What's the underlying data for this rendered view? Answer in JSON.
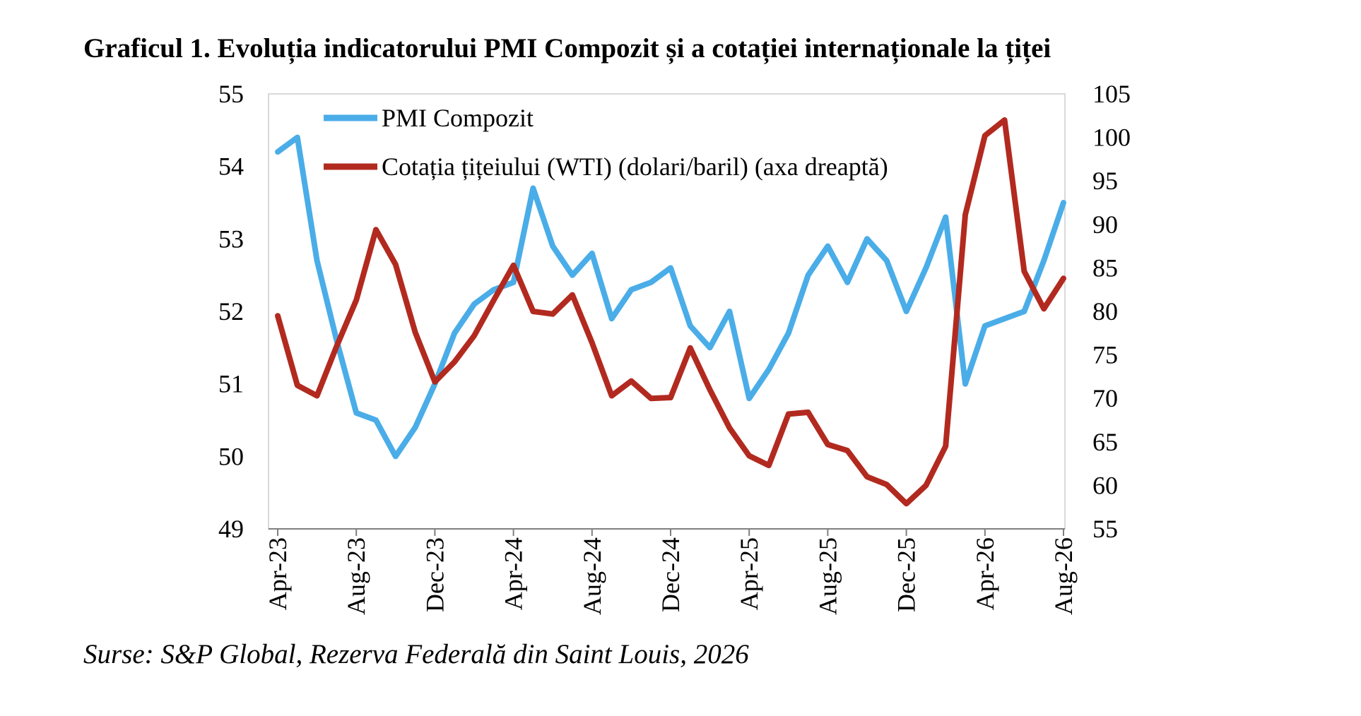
{
  "chart_data": {
    "type": "line",
    "title": "Graficul 1. Evoluția indicatorului PMI Compozit și a cotației internaționale la țiței",
    "source": "Surse: S&P Global, Rezerva Federală din Saint Louis, 2026",
    "x": [
      "Apr-23",
      "May-23",
      "Jun-23",
      "Jul-23",
      "Aug-23",
      "Sep-23",
      "Oct-23",
      "Nov-23",
      "Dec-23",
      "Jan-24",
      "Feb-24",
      "Mar-24",
      "Apr-24",
      "May-24",
      "Jun-24",
      "Jul-24",
      "Aug-24",
      "Sep-24",
      "Oct-24",
      "Nov-24",
      "Dec-24",
      "Jan-25",
      "Feb-25",
      "Mar-25",
      "Apr-25",
      "May-25",
      "Jun-25",
      "Jul-25",
      "Aug-25",
      "Sep-25",
      "Oct-25",
      "Nov-25",
      "Dec-25",
      "Jan-26",
      "Feb-26",
      "Mar-26",
      "Apr-26",
      "May-26",
      "Jun-26",
      "Jul-26",
      "Aug-26"
    ],
    "x_tick_labels": [
      "Apr-23",
      "Aug-23",
      "Dec-23",
      "Apr-24",
      "Aug-24",
      "Dec-24",
      "Apr-25",
      "Aug-25",
      "Dec-25",
      "Apr-26",
      "Aug-26"
    ],
    "y_left": {
      "ylim": [
        49,
        55
      ],
      "ticks": [
        "49",
        "50",
        "51",
        "52",
        "53",
        "54",
        "55"
      ]
    },
    "y_right": {
      "ylim": [
        55,
        105
      ],
      "ticks": [
        "55",
        "60",
        "65",
        "70",
        "75",
        "80",
        "85",
        "90",
        "95",
        "100",
        "105"
      ]
    },
    "series": [
      {
        "name": "PMI Compozit",
        "axis": "left",
        "color": "#4AADE8",
        "values": [
          54.2,
          54.4,
          52.7,
          51.6,
          50.6,
          50.5,
          50.0,
          50.4,
          51.0,
          51.7,
          52.1,
          52.3,
          52.4,
          53.7,
          52.9,
          52.5,
          52.8,
          51.9,
          52.3,
          52.4,
          52.6,
          51.8,
          51.5,
          52.0,
          50.8,
          51.2,
          51.7,
          52.5,
          52.9,
          52.4,
          53.0,
          52.7,
          52.0,
          52.6,
          53.3,
          51.0,
          51.8,
          51.9,
          52.0,
          52.7,
          53.5
        ]
      },
      {
        "name": "Cotația țițeiului (WTI) (dolari/baril) (axa dreaptă)",
        "axis": "right",
        "color": "#B22A1F",
        "values": [
          79.5,
          71.5,
          70.3,
          76.0,
          81.3,
          89.4,
          85.4,
          77.6,
          71.9,
          74.2,
          77.2,
          81.3,
          85.3,
          80.0,
          79.7,
          81.9,
          76.4,
          70.3,
          72.0,
          70.0,
          70.1,
          75.8,
          71.0,
          66.6,
          63.4,
          62.3,
          68.2,
          68.4,
          64.7,
          64.0,
          61.0,
          60.1,
          57.9,
          60.0,
          64.5,
          91.1,
          100.2,
          102.0,
          84.6,
          80.3,
          83.8
        ]
      }
    ],
    "legend": "top-left inside",
    "grid": false
  }
}
